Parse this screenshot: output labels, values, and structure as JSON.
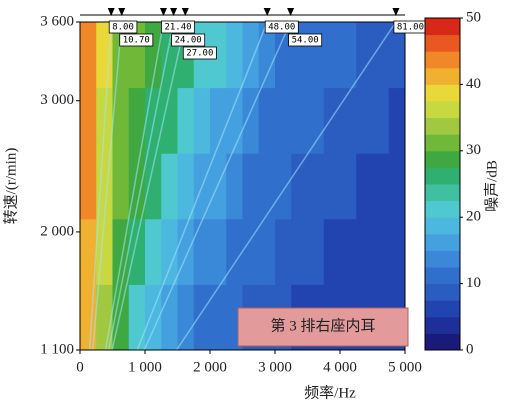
{
  "chart_data": {
    "type": "heatmap",
    "x_label": "频率/Hz",
    "y_label": "转速/(r/min)",
    "colorbar_label": "噪声/dB",
    "annotation": "第 3 排右座内耳",
    "xlim": [
      0,
      5000
    ],
    "xticks": [
      0,
      {
        "value": 1000,
        "label": "1 000"
      },
      {
        "value": 2000,
        "label": "2 000"
      },
      {
        "value": 3000,
        "label": "3 000"
      },
      {
        "value": 4000,
        "label": "4 000"
      },
      {
        "value": 5000,
        "label": "5 000"
      }
    ],
    "ylim": [
      1100,
      3600
    ],
    "yticks": [
      {
        "value": 1100,
        "label": "1 100"
      },
      {
        "value": 2000,
        "label": "2 000"
      },
      {
        "value": 3000,
        "label": "3 000"
      },
      {
        "value": 3600,
        "label": "3 600"
      }
    ],
    "x_bins": [
      0,
      250,
      500,
      750,
      1000,
      1250,
      1500,
      1750,
      2000,
      2250,
      2500,
      2750,
      3000,
      3250,
      3500,
      3750,
      4000,
      4250,
      4500,
      4750,
      5000
    ],
    "y_bins": [
      1100,
      1600,
      2100,
      2600,
      3100,
      3600
    ],
    "z": [
      [
        40,
        33,
        28,
        22,
        18,
        15,
        13,
        12,
        11,
        10,
        9,
        8,
        8,
        7,
        7,
        6,
        6,
        5,
        5,
        5
      ],
      [
        42,
        35,
        29,
        27,
        22,
        19,
        16,
        14,
        13,
        12,
        11,
        10,
        9,
        8,
        8,
        7,
        7,
        6,
        6,
        5
      ],
      [
        43,
        36,
        30,
        28,
        26,
        22,
        19,
        17,
        15,
        13,
        12,
        11,
        10,
        9,
        9,
        8,
        8,
        7,
        7,
        6
      ],
      [
        44,
        37,
        31,
        29,
        27,
        26,
        22,
        19,
        17,
        15,
        14,
        12,
        11,
        10,
        10,
        9,
        9,
        8,
        8,
        7
      ],
      [
        44,
        38,
        32,
        30,
        28,
        27,
        26,
        22,
        20,
        18,
        16,
        14,
        12,
        12,
        11,
        10,
        10,
        9,
        9,
        8
      ]
    ],
    "clim": [
      0,
      50
    ],
    "cticks": [
      0,
      10,
      20,
      30,
      40,
      50
    ],
    "colormap": [
      "#1a1a7a",
      "#1f2f9a",
      "#2244b0",
      "#2b5cc0",
      "#3070cc",
      "#3a88d8",
      "#45a0e0",
      "#4cb8e0",
      "#50c8d0",
      "#40c0a0",
      "#30b070",
      "#40a840",
      "#70b838",
      "#a0c840",
      "#c8d840",
      "#e8d838",
      "#f0b030",
      "#f08828",
      "#e85820",
      "#d82818"
    ],
    "orders": [
      {
        "value": 8,
        "label": "8.00"
      },
      {
        "value": 10.7,
        "label": "10.70"
      },
      {
        "value": 21.4,
        "label": "21.40"
      },
      {
        "value": 24,
        "label": "24.00"
      },
      {
        "value": 27,
        "label": "27.00"
      },
      {
        "value": 48,
        "label": "48.00"
      },
      {
        "value": 54,
        "label": "54.00"
      },
      {
        "value": 81,
        "label": "81.00"
      }
    ]
  }
}
